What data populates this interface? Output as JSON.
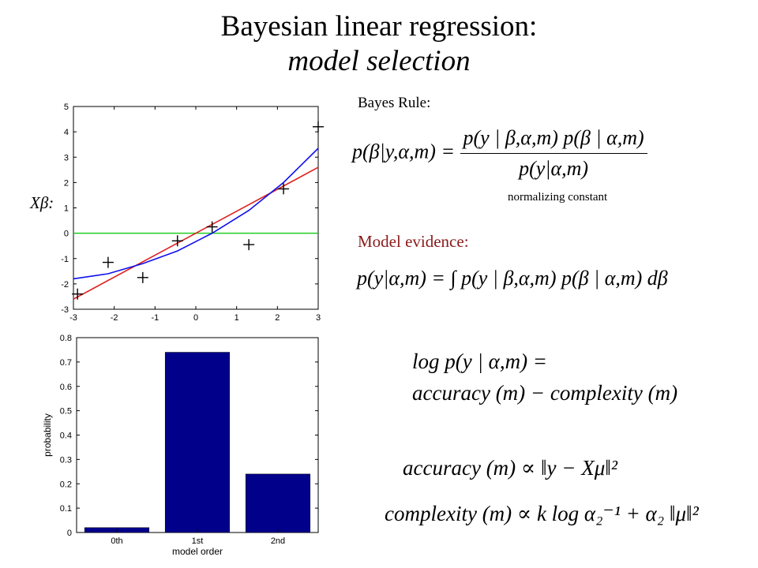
{
  "title": {
    "line1": "Bayesian linear regression:",
    "line2": "model selection"
  },
  "bayes_rule_label": "Bayes Rule:",
  "normalizing_label": "normalizing constant",
  "evidence_label": "Model evidence:",
  "eq_bayes": {
    "lhs": "p(β|y,α,m) =",
    "num": "p(y | β,α,m) p(β | α,m)",
    "den": "p(y|α,m)"
  },
  "eq_evidence": "p(y|α,m) = ∫ p(y | β,α,m) p(β | α,m) dβ",
  "eq_log": {
    "line1": "log p(y | α,m) =",
    "line2": "accuracy (m) − complexity (m)"
  },
  "eq_accuracy": "accuracy (m) ∝ ‖y − Xμ‖²",
  "eq_complexity": "complexity (m) ∝ k log α₂⁻¹ + α₂ ‖μ‖²",
  "colors": {
    "green": "#22cc22",
    "red": "#e02020",
    "blue": "#1010ee",
    "bar": "#00008b"
  },
  "chart_data": [
    {
      "type": "scatter",
      "ylabel": "Xβ:",
      "xlim": [
        -3,
        3
      ],
      "ylim": [
        -3,
        5
      ],
      "xticks": [
        "-3",
        "-2",
        "-1",
        "0",
        "1",
        "2",
        "3"
      ],
      "yticks": [
        "-3",
        "-2",
        "-1",
        "0",
        "1",
        "2",
        "3",
        "4",
        "5"
      ],
      "points": [
        {
          "x": -2.9,
          "y": -2.4
        },
        {
          "x": -2.15,
          "y": -1.15
        },
        {
          "x": -1.3,
          "y": -1.75
        },
        {
          "x": -0.45,
          "y": -0.3
        },
        {
          "x": 0.4,
          "y": 0.25
        },
        {
          "x": 1.3,
          "y": -0.45
        },
        {
          "x": 2.15,
          "y": 1.75
        },
        {
          "x": 3.0,
          "y": 4.2
        }
      ],
      "series": [
        {
          "type": "line",
          "color": "#22cc22",
          "x": [
            -3,
            3
          ],
          "y": [
            0,
            0
          ]
        },
        {
          "type": "line",
          "color": "#e02020",
          "x": [
            -3,
            3
          ],
          "y": [
            -2.6,
            2.6
          ]
        },
        {
          "type": "line",
          "color": "#1010ee",
          "x": [
            -3,
            -2.15,
            -1.3,
            -0.45,
            0.4,
            1.3,
            2.15,
            3
          ],
          "y": [
            -1.8,
            -1.6,
            -1.2,
            -0.7,
            0.0,
            0.9,
            2.0,
            3.35
          ]
        }
      ]
    },
    {
      "type": "bar",
      "categories": [
        "0th",
        "1st",
        "2nd"
      ],
      "values": [
        0.02,
        0.74,
        0.24
      ],
      "xlabel": "model order",
      "ylabel": "probability",
      "ylim": [
        0,
        0.8
      ],
      "yticks": [
        "0",
        "0.1",
        "0.2",
        "0.3",
        "0.4",
        "0.5",
        "0.6",
        "0.7",
        "0.8"
      ]
    }
  ]
}
